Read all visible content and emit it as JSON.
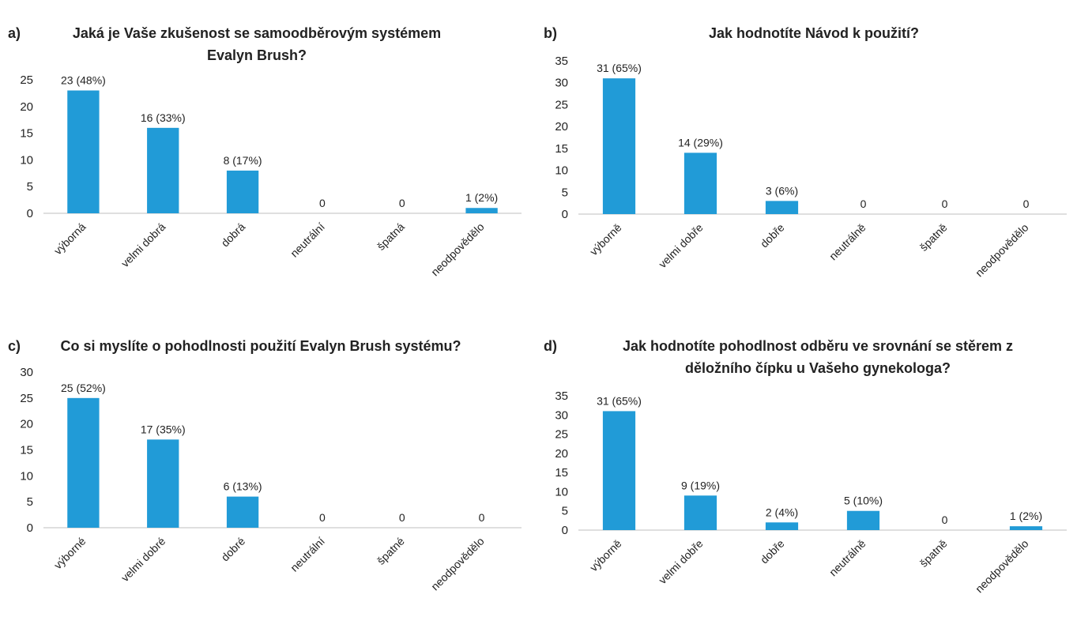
{
  "colors": {
    "bar": "#219bd7",
    "axis": "#bfbfbf",
    "text": "#222222"
  },
  "chart_data": [
    {
      "type": "bar",
      "panel": "a)",
      "title": [
        "Jaká je Vaše zkušenost se samoodběrovým systémem",
        "Evalyn Brush?"
      ],
      "categories": [
        "výborná",
        "velmi dobrá",
        "dobrá",
        "neutrální",
        "špatná",
        "neodpovědělo"
      ],
      "values": [
        23,
        16,
        8,
        0,
        0,
        1
      ],
      "labels": [
        "23 (48%)",
        "16 (33%)",
        "8 (17%)",
        "0",
        "0",
        "1 (2%)"
      ],
      "ylim": [
        0,
        25
      ],
      "yticks": [
        0,
        5,
        10,
        15,
        20,
        25
      ],
      "grid": false
    },
    {
      "type": "bar",
      "panel": "b)",
      "title": [
        "Jak hodnotíte Návod k použití?"
      ],
      "categories": [
        "výborně",
        "velmi dobře",
        "dobře",
        "neutrálně",
        "špatně",
        "neodpovědělo"
      ],
      "values": [
        31,
        14,
        3,
        0,
        0,
        0
      ],
      "labels": [
        "31 (65%)",
        "14 (29%)",
        "3 (6%)",
        "0",
        "0",
        "0"
      ],
      "ylim": [
        0,
        35
      ],
      "yticks": [
        0,
        5,
        10,
        15,
        20,
        25,
        30,
        35
      ],
      "grid": false
    },
    {
      "type": "bar",
      "panel": "c)",
      "title": [
        "Co si myslíte o pohodlnosti použití Evalyn Brush systému?"
      ],
      "categories": [
        "výborné",
        "velmi dobré",
        "dobré",
        "neutrální",
        "špatné",
        "neodpovědělo"
      ],
      "values": [
        25,
        17,
        6,
        0,
        0,
        0
      ],
      "labels": [
        "25 (52%)",
        "17 (35%)",
        "6 (13%)",
        "0",
        "0",
        "0"
      ],
      "ylim": [
        0,
        30
      ],
      "yticks": [
        0,
        5,
        10,
        15,
        20,
        25,
        30
      ],
      "grid": false
    },
    {
      "type": "bar",
      "panel": "d)",
      "title": [
        "Jak hodnotíte pohodlnost odběru ve srovnání se stěrem z",
        "děložního čípku u Vašeho gynekologa?"
      ],
      "categories": [
        "výborně",
        "velmi dobře",
        "dobře",
        "neutrálně",
        "špatně",
        "neodpovědělo"
      ],
      "values": [
        31,
        9,
        2,
        5,
        0,
        1
      ],
      "labels": [
        "31 (65%)",
        "9 (19%)",
        "2 (4%)",
        "5 (10%)",
        "0",
        "1 (2%)"
      ],
      "ylim": [
        0,
        35
      ],
      "yticks": [
        0,
        5,
        10,
        15,
        20,
        25,
        30,
        35
      ],
      "grid": false
    }
  ]
}
